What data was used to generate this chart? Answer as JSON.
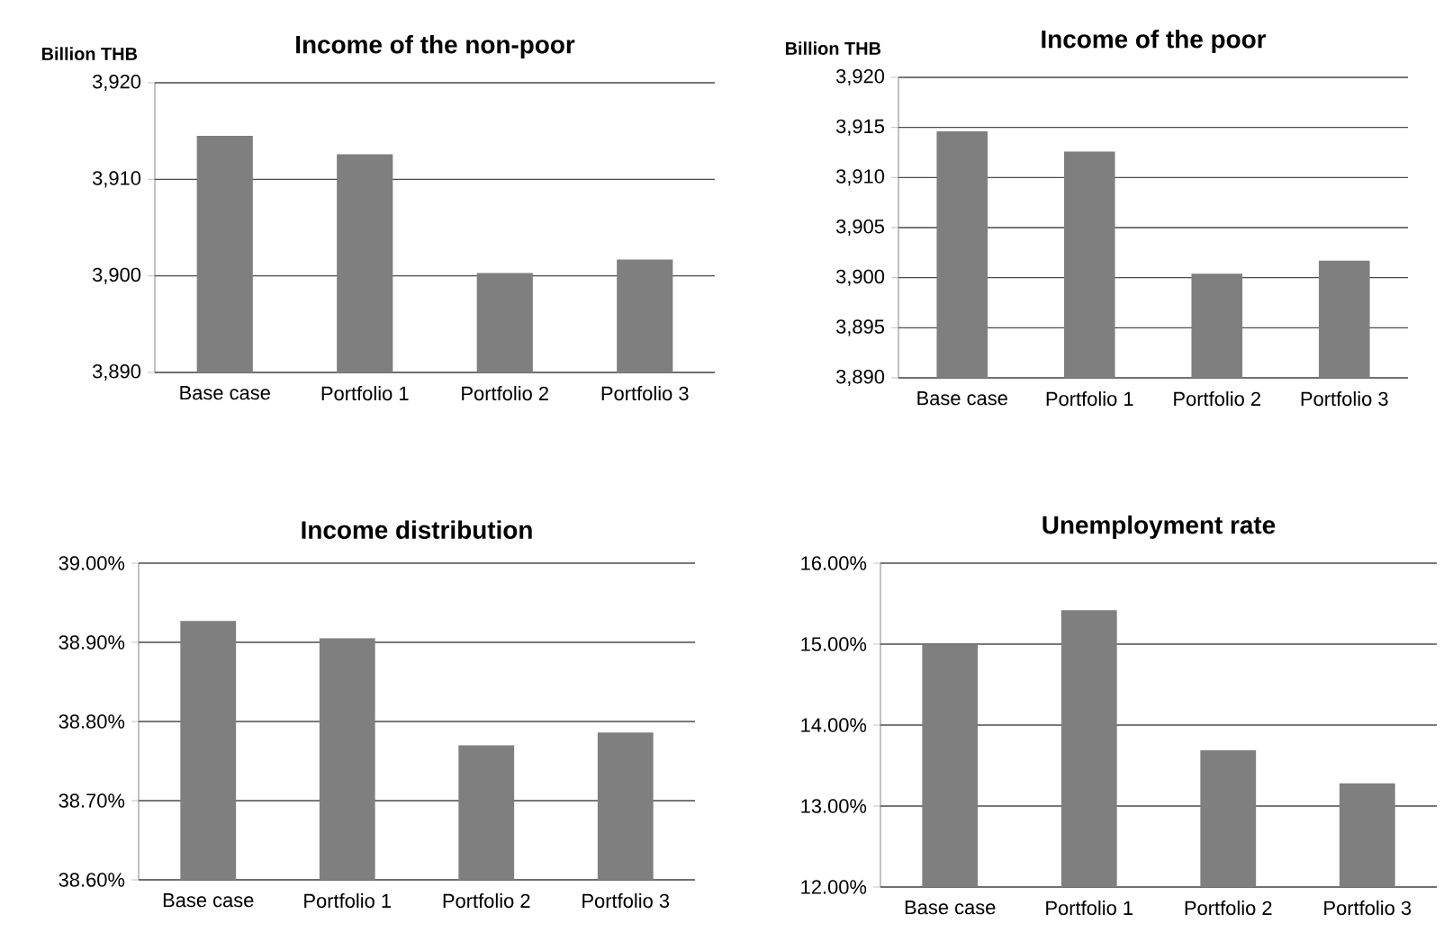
{
  "chart_data": [
    {
      "type": "bar",
      "title": "Income of the non-poor",
      "ylabel": "Billion THB",
      "categories": [
        "Base case",
        "Portfolio 1",
        "Portfolio 2",
        "Portfolio 3"
      ],
      "values": [
        3914.5,
        3912.6,
        3900.3,
        3901.7
      ],
      "color": "#7f7f7f",
      "ylim": [
        3890,
        3920
      ],
      "yticks": [
        {
          "value": 3890,
          "label": "3,890"
        },
        {
          "value": 3900,
          "label": "3,900"
        },
        {
          "value": 3910,
          "label": "3,910"
        },
        {
          "value": 3920,
          "label": "3,920"
        }
      ],
      "grid": "y"
    },
    {
      "type": "bar",
      "title": "Income of the poor",
      "ylabel": "Billion THB",
      "categories": [
        "Base case",
        "Portfolio 1",
        "Portfolio 2",
        "Portfolio 3"
      ],
      "values": [
        3914.6,
        3912.6,
        3900.4,
        3901.7
      ],
      "color": "#7f7f7f",
      "ylim": [
        3890,
        3920
      ],
      "yticks": [
        {
          "value": 3890,
          "label": "3,890"
        },
        {
          "value": 3895,
          "label": "3,895"
        },
        {
          "value": 3900,
          "label": "3,900"
        },
        {
          "value": 3905,
          "label": "3,905"
        },
        {
          "value": 3910,
          "label": "3,910"
        },
        {
          "value": 3915,
          "label": "3,915"
        },
        {
          "value": 3920,
          "label": "3,920"
        }
      ],
      "grid": "y"
    },
    {
      "type": "bar",
      "title": "Income distribution",
      "categories": [
        "Base case",
        "Portfolio 1",
        "Portfolio 2",
        "Portfolio 3"
      ],
      "values": [
        38.927,
        38.905,
        38.77,
        38.786
      ],
      "color": "#7f7f7f",
      "ylim": [
        38.6,
        39.0
      ],
      "yticks": [
        {
          "value": 38.6,
          "label": "38.60%"
        },
        {
          "value": 38.7,
          "label": "38.70%"
        },
        {
          "value": 38.8,
          "label": "38.80%"
        },
        {
          "value": 38.9,
          "label": "38.90%"
        },
        {
          "value": 39.0,
          "label": "39.00%"
        }
      ],
      "grid": "y"
    },
    {
      "type": "bar",
      "title": "Unemployment rate",
      "categories": [
        "Base case",
        "Portfolio 1",
        "Portfolio 2",
        "Portfolio 3"
      ],
      "values": [
        14.99,
        15.42,
        13.69,
        13.28
      ],
      "color": "#7f7f7f",
      "ylim": [
        12,
        16
      ],
      "yticks": [
        {
          "value": 12,
          "label": "12.00%"
        },
        {
          "value": 13,
          "label": "13.00%"
        },
        {
          "value": 14,
          "label": "14.00%"
        },
        {
          "value": 15,
          "label": "15.00%"
        },
        {
          "value": 16,
          "label": "16.00%"
        }
      ],
      "grid": "y"
    }
  ]
}
